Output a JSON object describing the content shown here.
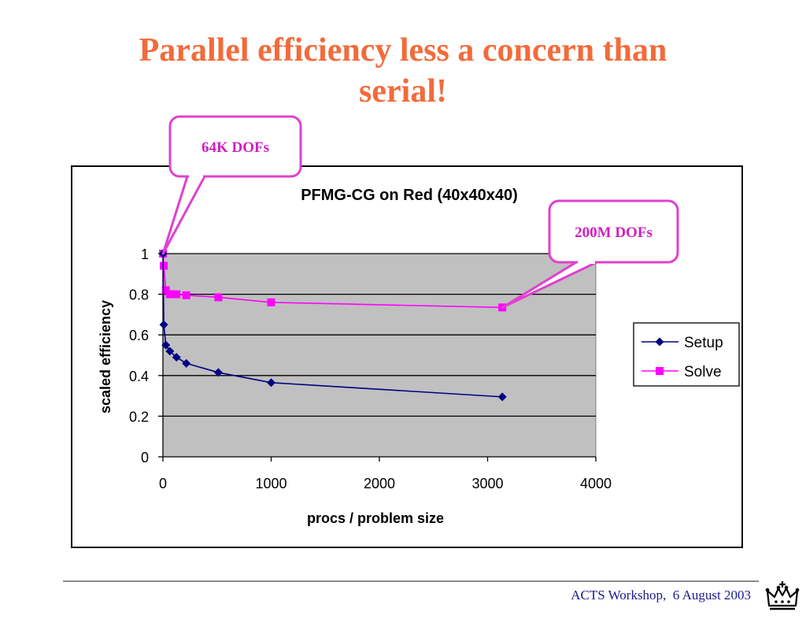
{
  "slide": {
    "title_line1": "Parallel efficiency less a concern than",
    "title_line2": "serial!",
    "footer": "ACTS Workshop,  6 August 2003",
    "logo_icon": "crown-icon",
    "colors": {
      "title": "#f26b3a",
      "callout_border": "#e040d0",
      "callout_text": "#d020c0",
      "footer_text": "#1a1a8c"
    }
  },
  "callouts": [
    {
      "text": "64K DOFs",
      "target_series": "Solve",
      "target_x": 1
    },
    {
      "text": "200M DOFs",
      "target_series": "Solve",
      "target_x": 3136
    }
  ],
  "chart_data": {
    "type": "line",
    "title": "PFMG-CG on Red (40x40x40)",
    "xlabel": "procs / problem size",
    "ylabel": "scaled efficiency",
    "xlim": [
      0,
      4000
    ],
    "ylim": [
      0,
      1
    ],
    "xticks": [
      "0",
      "1000",
      "2000",
      "3000",
      "4000"
    ],
    "yticks": [
      "0",
      "0.2",
      "0.4",
      "0.6",
      "0.8",
      "1"
    ],
    "grid": "horizontal",
    "plot_background": "#c0c0c0",
    "legend_position": "right",
    "series": [
      {
        "name": "Setup",
        "color": "#000080",
        "marker": "diamond",
        "x": [
          1,
          8,
          27,
          64,
          125,
          216,
          512,
          1000,
          3136
        ],
        "y": [
          1.0,
          0.65,
          0.55,
          0.52,
          0.49,
          0.46,
          0.415,
          0.365,
          0.295
        ]
      },
      {
        "name": "Solve",
        "color": "#ff00ff",
        "marker": "square",
        "x": [
          1,
          8,
          27,
          64,
          125,
          216,
          512,
          1000,
          3136
        ],
        "y": [
          1.0,
          0.94,
          0.82,
          0.8,
          0.8,
          0.795,
          0.785,
          0.76,
          0.735
        ]
      }
    ]
  }
}
